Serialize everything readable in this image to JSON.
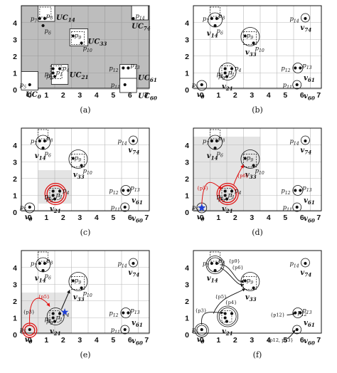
{
  "panels": [
    {
      "caption": "(a)"
    },
    {
      "caption": "(b)"
    },
    {
      "caption": "(c)"
    },
    {
      "caption": "(d)"
    },
    {
      "caption": "(e)"
    },
    {
      "caption": "(f)"
    }
  ],
  "x_ticks": [
    "0",
    "1",
    "2",
    "3",
    "4",
    "5",
    "6",
    "7"
  ],
  "y_ticks": [
    "0",
    "1",
    "2",
    "3",
    "4"
  ],
  "point_labels": {
    "p5": "p5",
    "p1": "p1",
    "p2": "p2",
    "p3": "p3",
    "p4": "p4",
    "p6": "p6",
    "p7": "p7",
    "p8": "p8",
    "p9": "p9",
    "p10": "p10",
    "p11": "p11",
    "p12": "p12",
    "p13": "p13",
    "p14": "p14"
  },
  "uc_labels": {
    "uc0": "UC0",
    "uc21": "UC21",
    "uc14": "UC14",
    "uc33": "UC33",
    "uc74": "UC74",
    "uc61": "UC61",
    "uc60": "UC60"
  },
  "v_labels": {
    "v0": "v0",
    "v21": "v21",
    "v14": "v14",
    "v33": "v33",
    "v74": "v74",
    "v61": "v61",
    "v60": "v60"
  },
  "annotations": {
    "d_p5": "{p5}",
    "d_p6": "{p6}",
    "e_p3": "{p3}",
    "e_p5": "{p5}",
    "f_p9": "{p9}",
    "f_p6": "{p6}",
    "f_p5": "{p5}",
    "f_p4": "{p4}",
    "f_p3": "{p3}",
    "f_p12": "{p12}",
    "f_p12p13": "{p12, p13}"
  },
  "colors": {
    "gray_area": "#bdbdbd",
    "highlight_area": "#e4e4e4",
    "grid_line": "#b8b8b8",
    "red": "#e01010",
    "star_blue": "#1f3fd6"
  }
}
